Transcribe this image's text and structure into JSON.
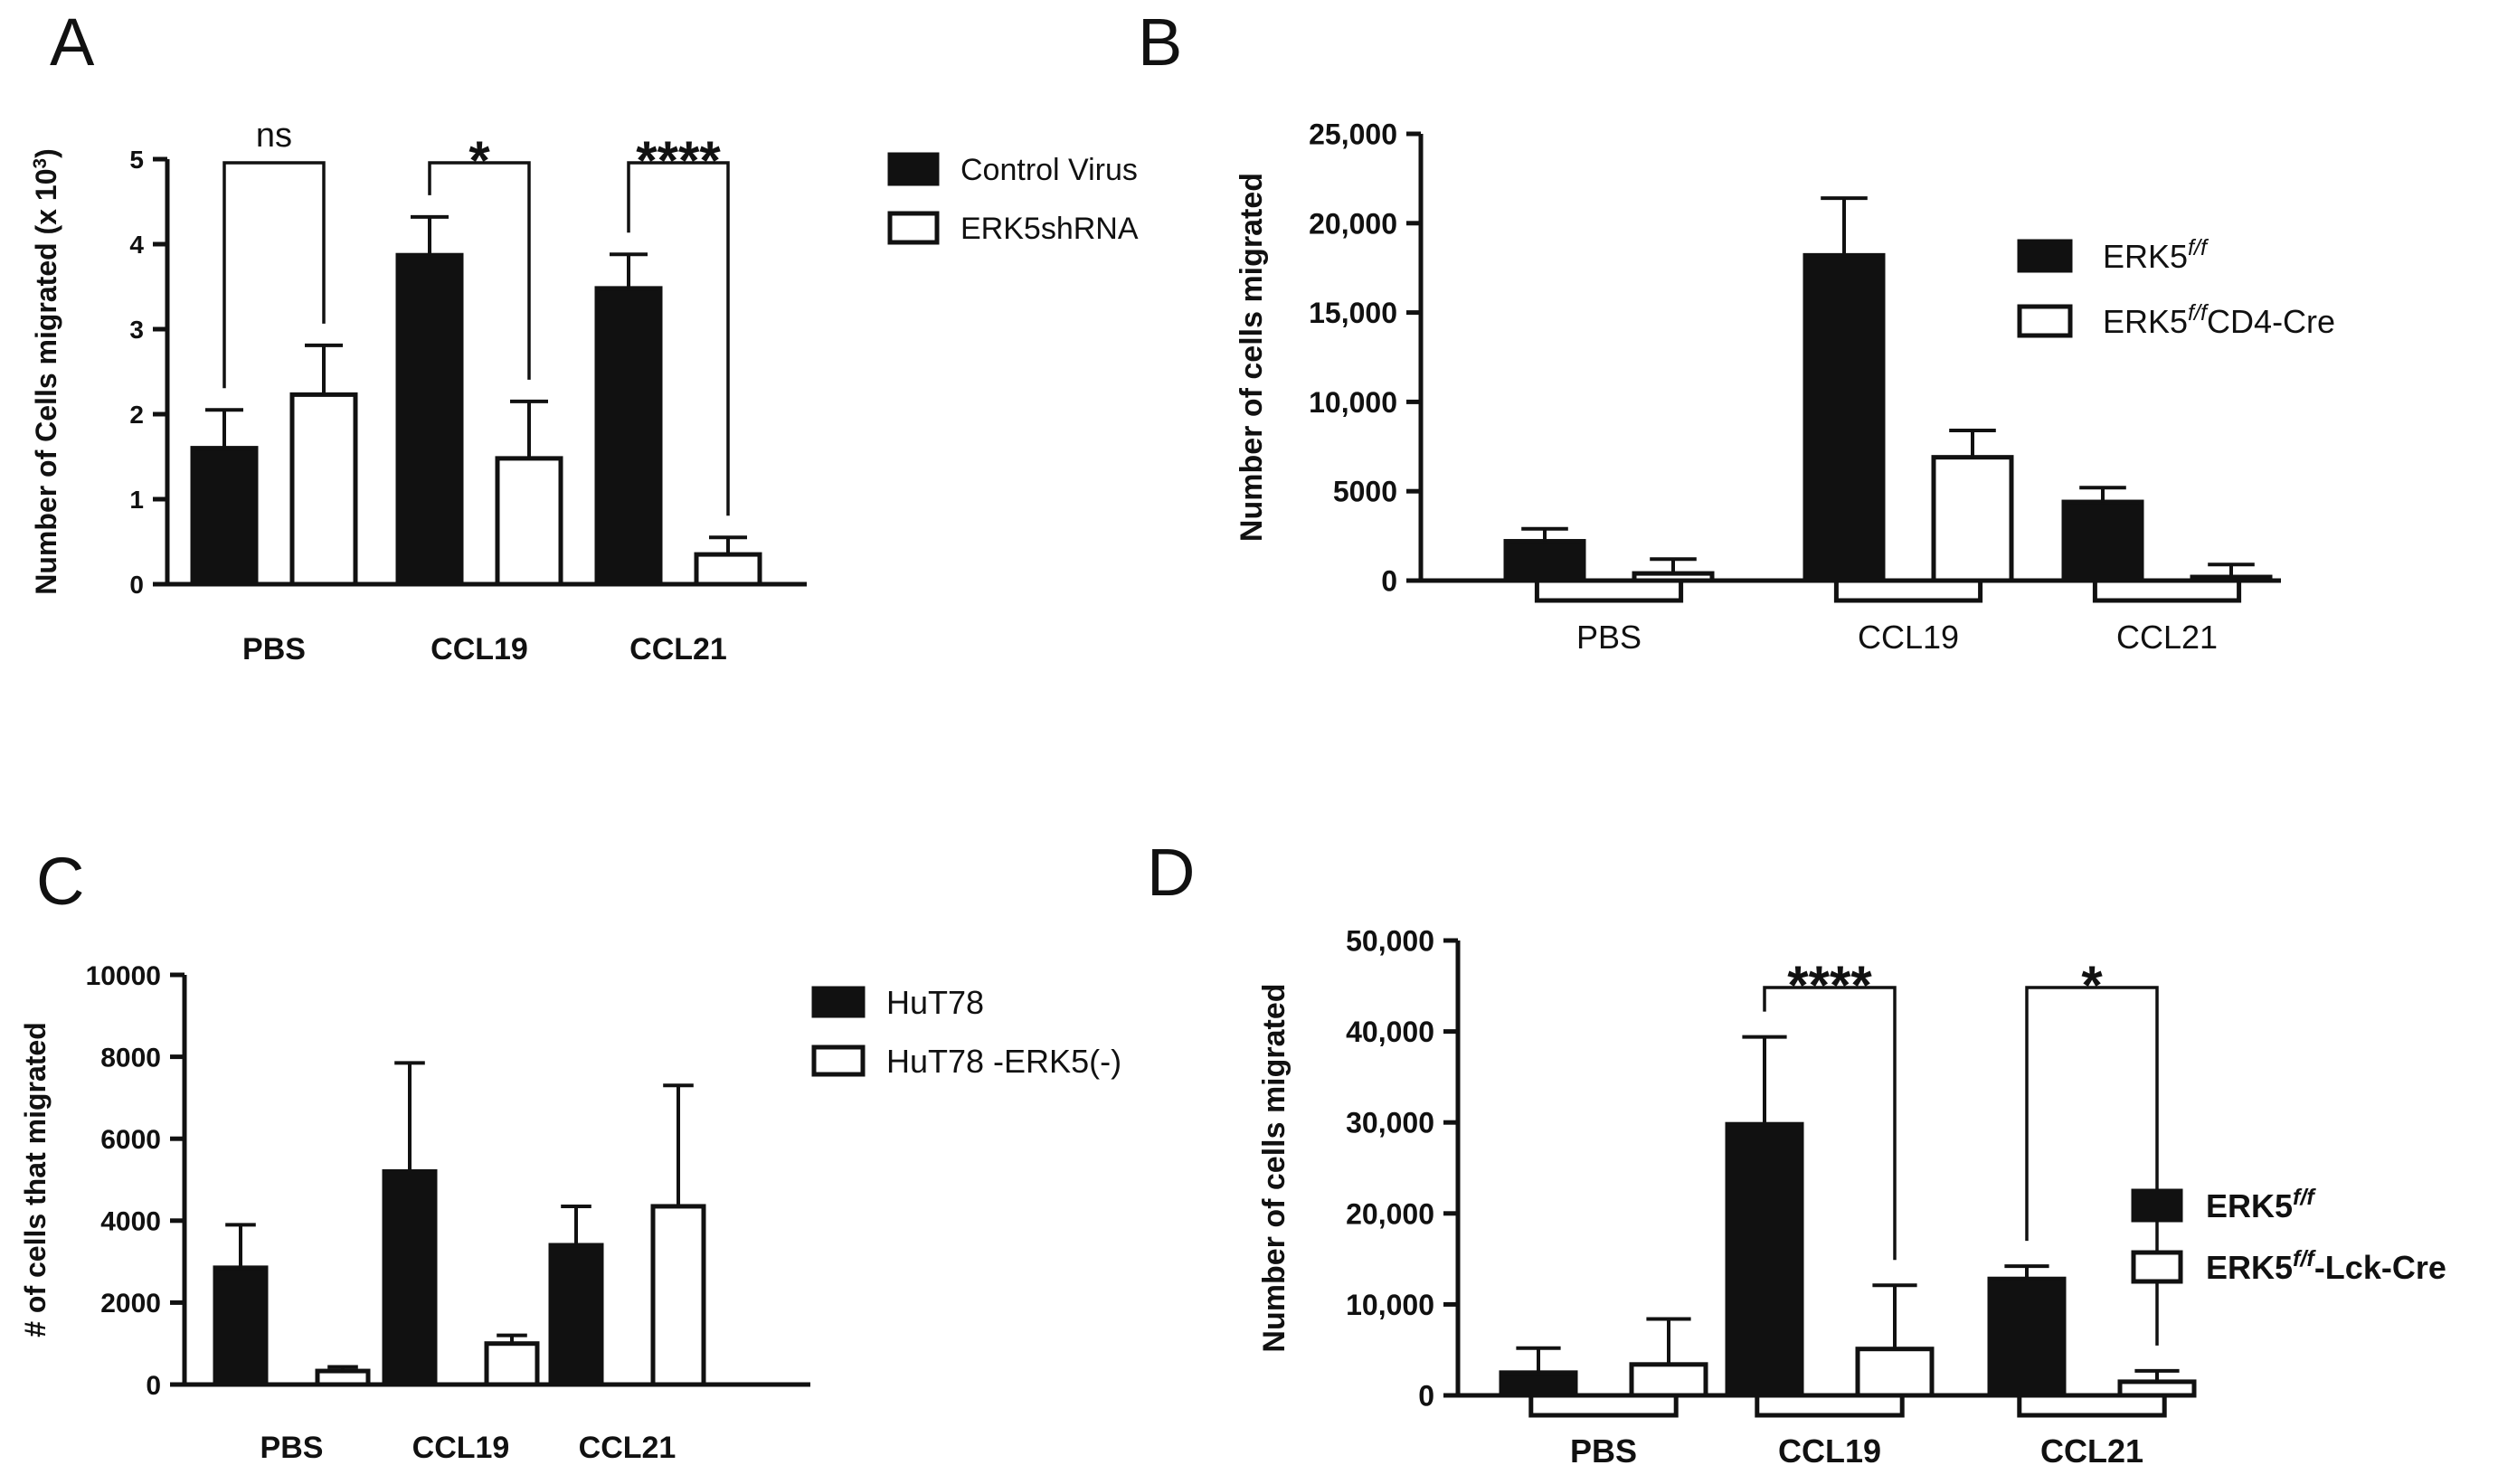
{
  "colors": {
    "ink": "#111111",
    "filled": "#111111",
    "open": "#ffffff"
  },
  "chart_data": [
    {
      "panel": "A",
      "type": "bar",
      "ylabel": "Number of Cells migrated (x 10",
      "ylabel_sup": "3",
      "ylabel_close": ")",
      "ylim": [
        0,
        5
      ],
      "yticks": [
        "0",
        "1",
        "2",
        "3",
        "4",
        "5"
      ],
      "categories": [
        "PBS",
        "CCL19",
        "CCL21"
      ],
      "series": [
        {
          "name": "Control Virus",
          "fill": "filled",
          "values": [
            1.6,
            3.87,
            3.48
          ],
          "errors": [
            0.45,
            0.45,
            0.4
          ]
        },
        {
          "name": "ERK5shRNA",
          "fill": "open",
          "values": [
            2.23,
            1.48,
            0.35
          ],
          "errors": [
            0.58,
            0.67,
            0.2
          ]
        }
      ],
      "significance": [
        "ns",
        "*",
        "****"
      ]
    },
    {
      "panel": "B",
      "type": "bar",
      "ylabel": "Number of cells migrated",
      "ylim": [
        0,
        25000
      ],
      "yticks": [
        "0",
        "5000",
        "10,000",
        "15,000",
        "20,000",
        "25,000"
      ],
      "categories": [
        "PBS",
        "CCL19",
        "CCL21"
      ],
      "series": [
        {
          "name": "ERK5",
          "sup": "f/f",
          "suffix": "",
          "fill": "filled",
          "values": [
            2200,
            18200,
            4400
          ],
          "errors": [
            700,
            3200,
            800
          ]
        },
        {
          "name": "ERK5",
          "sup": "f/f",
          "suffix": "CD4-Cre",
          "fill": "open",
          "values": [
            400,
            6900,
            200
          ],
          "errors": [
            800,
            1500,
            700
          ]
        }
      ],
      "significance": []
    },
    {
      "panel": "C",
      "type": "bar",
      "ylabel": "# of cells that migrated",
      "ylim": [
        0,
        10000
      ],
      "yticks": [
        "0",
        "2000",
        "4000",
        "6000",
        "8000",
        "10000"
      ],
      "categories": [
        "PBS",
        "CCL19",
        "CCL21"
      ],
      "series": [
        {
          "name": "HuT78",
          "fill": "filled",
          "values": [
            2850,
            5200,
            3400
          ],
          "errors": [
            1050,
            2650,
            950
          ]
        },
        {
          "name": "HuT78 -ERK5(-)",
          "fill": "open",
          "values": [
            330,
            1000,
            4350
          ],
          "errors": [
            100,
            200,
            2950
          ]
        }
      ],
      "significance": []
    },
    {
      "panel": "D",
      "type": "bar",
      "ylabel": "Number of cells migrated",
      "ylim": [
        0,
        50000
      ],
      "yticks": [
        "0",
        "10,000",
        "20,000",
        "30,000",
        "40,000",
        "50,000"
      ],
      "categories": [
        "PBS",
        "CCL19",
        "CCL21"
      ],
      "series": [
        {
          "name": "ERK5",
          "sup": "f/f",
          "suffix": "",
          "fill": "filled",
          "values": [
            2500,
            29800,
            12800
          ],
          "errors": [
            2700,
            9600,
            1400
          ]
        },
        {
          "name": "ERK5",
          "sup": "f/f",
          "suffix": "-Lck-Cre",
          "fill": "open",
          "values": [
            3400,
            5100,
            1500
          ],
          "errors": [
            5000,
            7000,
            1200
          ]
        }
      ],
      "significance": [
        "",
        "****",
        "*"
      ]
    }
  ]
}
